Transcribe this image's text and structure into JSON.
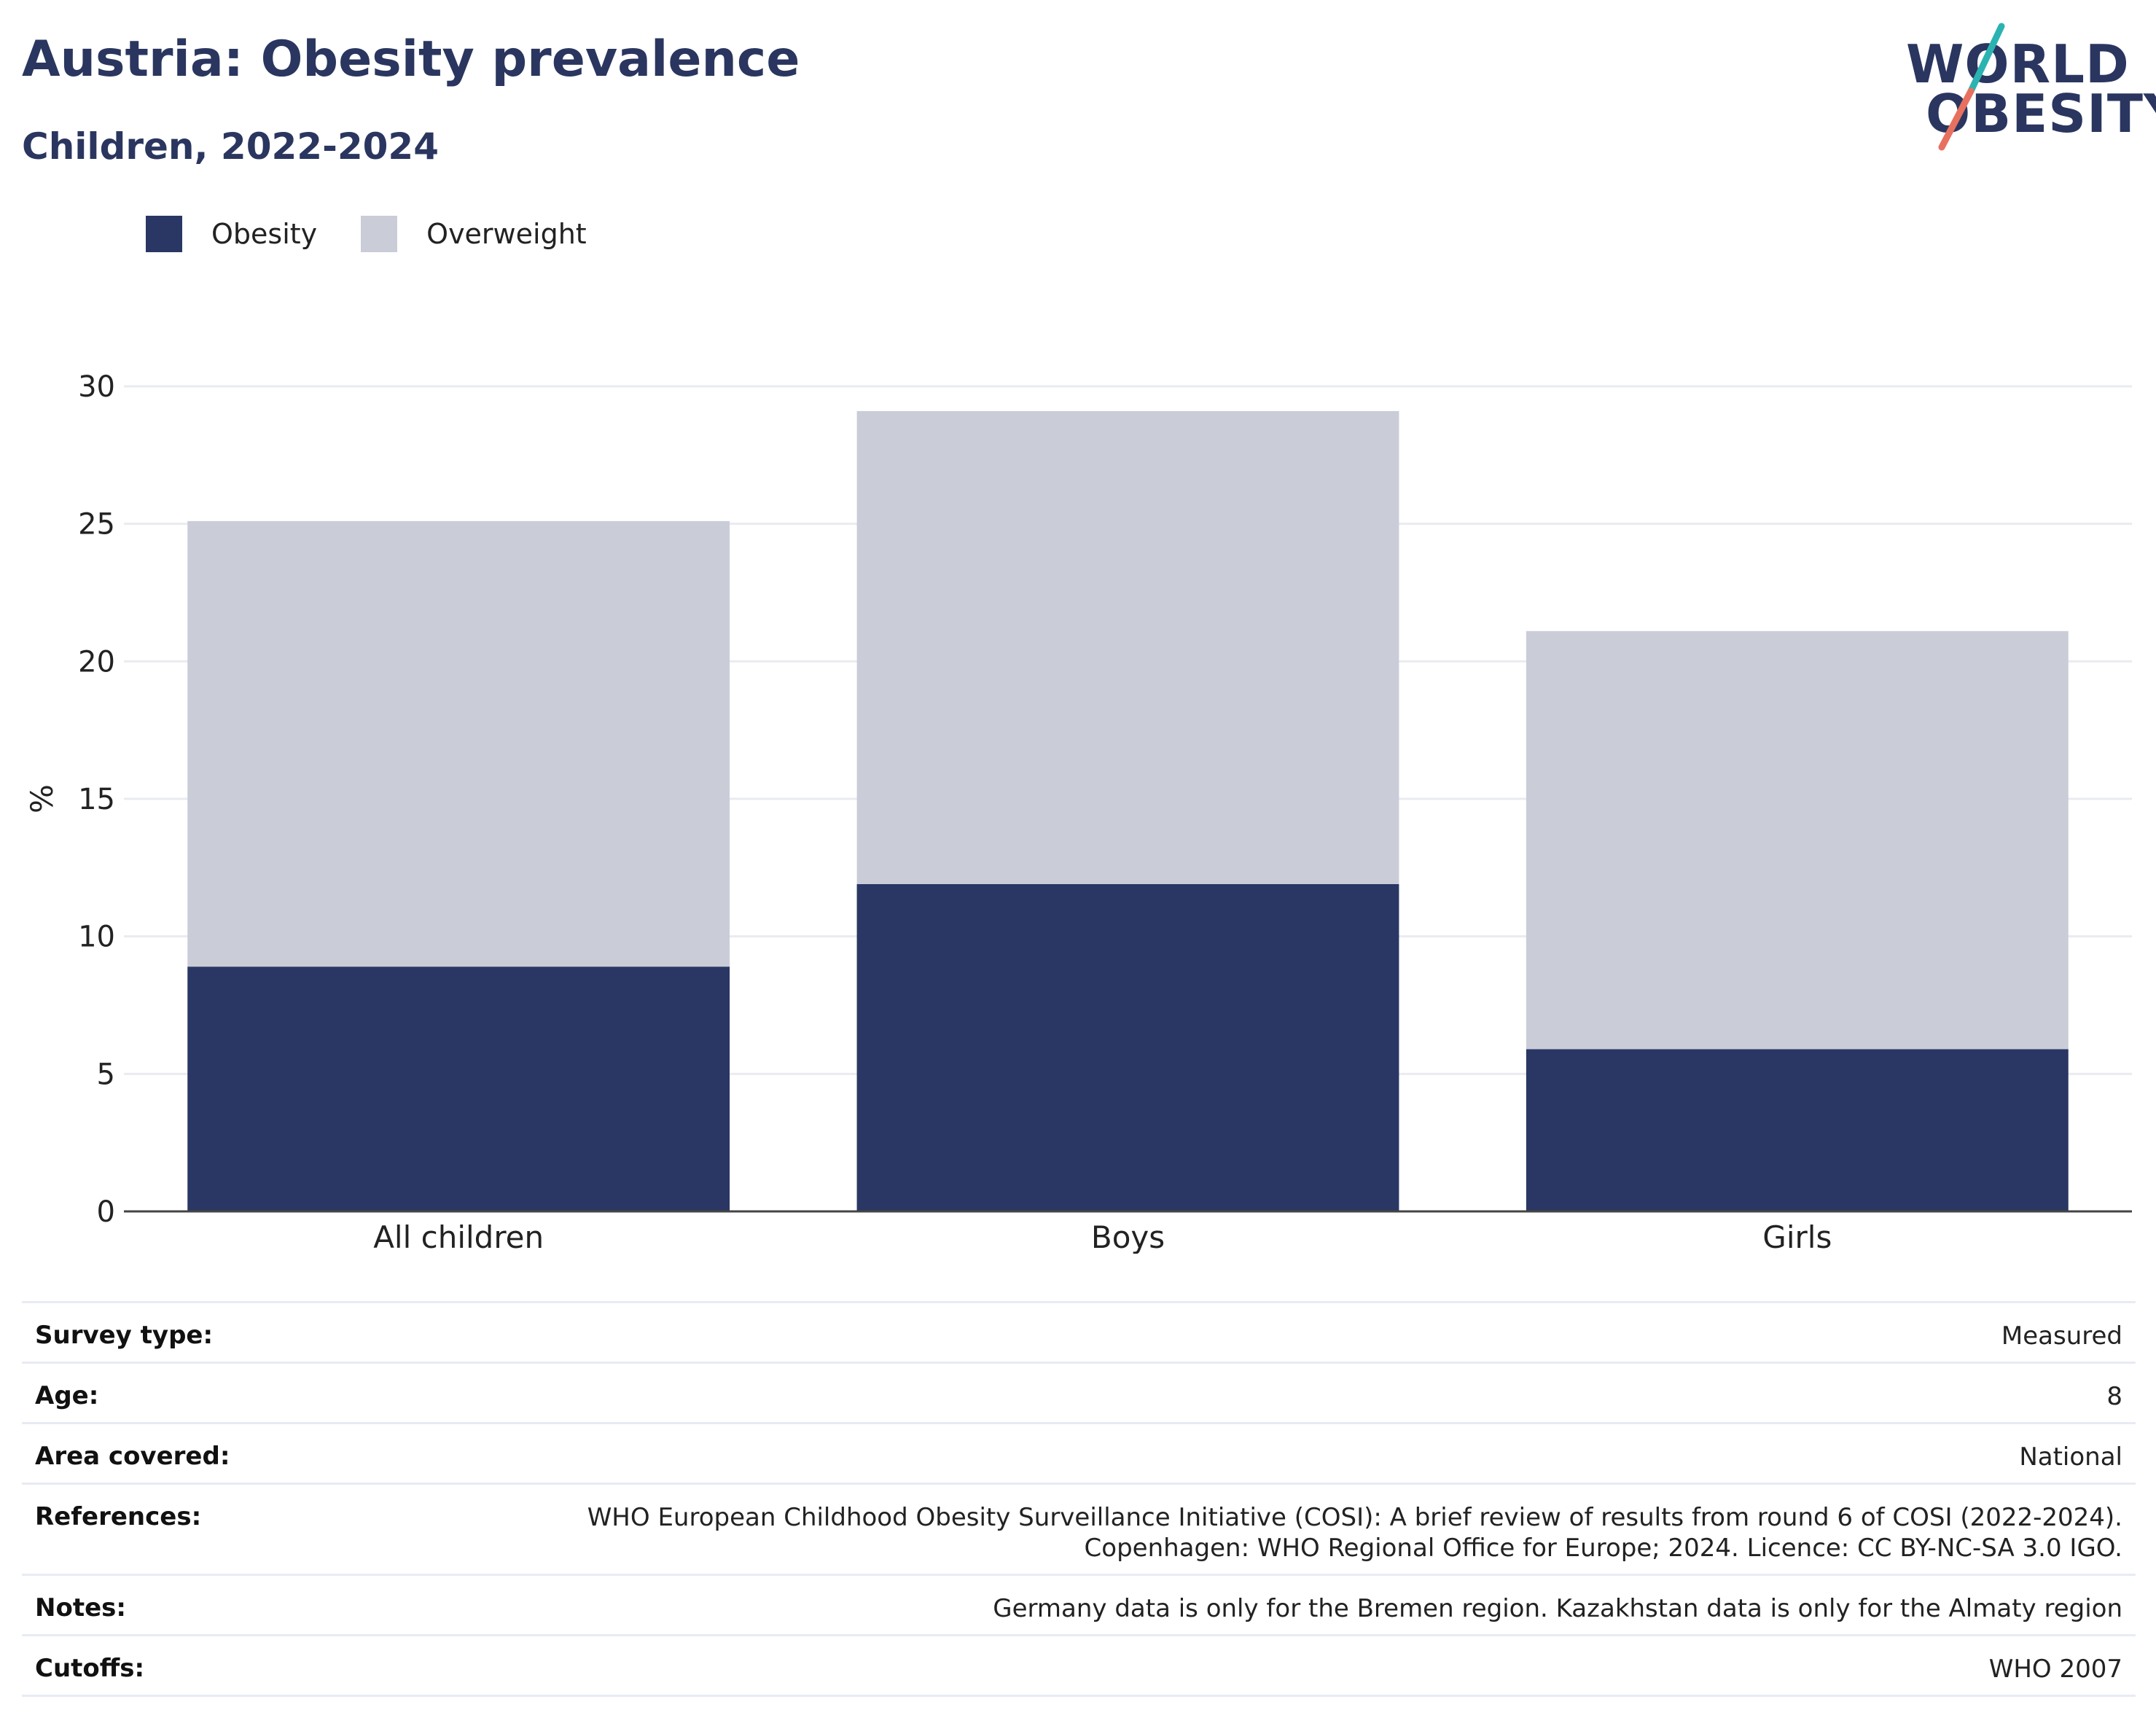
{
  "header": {
    "title": "Austria: Obesity prevalence",
    "subtitle": "Children, 2022-2024"
  },
  "logo": {
    "line1": "WORLD",
    "line2": "OBESITY",
    "colors": {
      "text": "#2a365f",
      "slash_top": "#2bb3b1",
      "slash_bottom": "#e8705f"
    }
  },
  "legend": [
    {
      "label": "Obesity",
      "color": "#2a3764"
    },
    {
      "label": "Overweight",
      "color": "#cacdd8"
    }
  ],
  "chart_data": {
    "type": "bar",
    "stacked": true,
    "categories": [
      "All children",
      "Boys",
      "Girls"
    ],
    "series": [
      {
        "name": "Obesity",
        "values": [
          8.9,
          11.9,
          5.9
        ],
        "color": "#2a3764"
      },
      {
        "name": "Overweight",
        "values": [
          16.2,
          17.2,
          15.2
        ],
        "color": "#cacdd8"
      }
    ],
    "ylabel": "%",
    "xlabel": "",
    "ylim": [
      0,
      30
    ],
    "yticks": [
      0,
      5,
      10,
      15,
      20,
      25,
      30
    ],
    "grid": true,
    "legend_position": "top-left"
  },
  "metadata": [
    {
      "label": "Survey type:",
      "value": "Measured"
    },
    {
      "label": "Age:",
      "value": "8"
    },
    {
      "label": "Area covered:",
      "value": "National"
    },
    {
      "label": "References:",
      "value": "WHO European Childhood Obesity Surveillance Initiative (COSI): A brief review of results from round 6 of COSI (2022-2024).\nCopenhagen: WHO Regional Office for Europe; 2024. Licence: CC BY-NC-SA 3.0 IGO."
    },
    {
      "label": "Notes:",
      "value": "Germany data is only for the Bremen region. Kazakhstan data is only for the Almaty region"
    },
    {
      "label": "Cutoffs:",
      "value": "WHO 2007"
    }
  ]
}
